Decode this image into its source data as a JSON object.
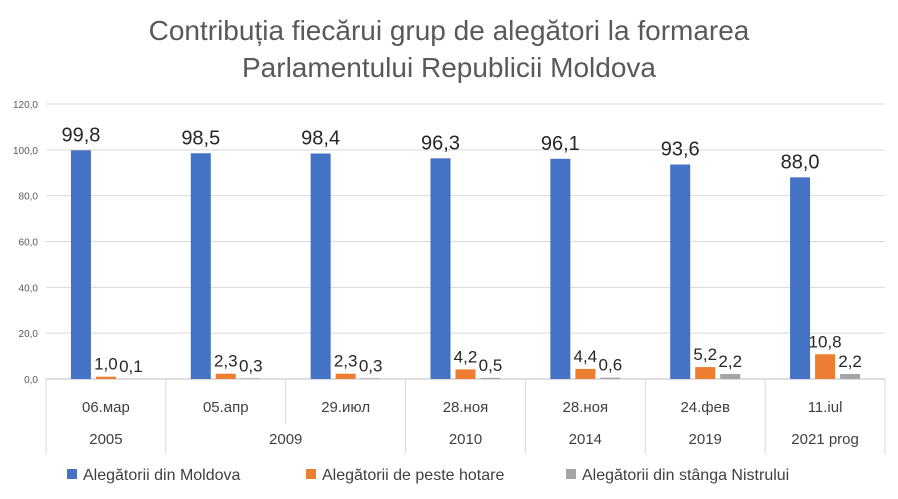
{
  "chart_data": {
    "type": "bar",
    "title_lines": [
      "Contribuția fiecărui grup de alegători la formarea",
      "Parlamentului Republicii Moldova"
    ],
    "categories": [
      "06.мар",
      "05.апр",
      "29.июл",
      "28.ноя",
      "28.ноя",
      "24.фев",
      "11.iul"
    ],
    "group_labels": [
      {
        "label": "2005",
        "span": 1
      },
      {
        "label": "2009",
        "span": 2
      },
      {
        "label": "2010",
        "span": 1
      },
      {
        "label": "2014",
        "span": 1
      },
      {
        "label": "2019",
        "span": 1
      },
      {
        "label": "2021 prog",
        "span": 1
      }
    ],
    "series": [
      {
        "name": "Alegătorii din Moldova",
        "color": "#4472C4",
        "values": [
          99.8,
          98.5,
          98.4,
          96.3,
          96.1,
          93.6,
          88.0
        ],
        "labels": [
          "99,8",
          "98,5",
          "98,4",
          "96,3",
          "96,1",
          "93,6",
          "88,0"
        ]
      },
      {
        "name": "Alegătorii de peste hotare",
        "color": "#ED7D31",
        "values": [
          1.0,
          2.3,
          2.3,
          4.2,
          4.4,
          5.2,
          10.8
        ],
        "labels": [
          "1,0",
          "2,3",
          "2,3",
          "4,2",
          "4,4",
          "5,2",
          "10,8"
        ]
      },
      {
        "name": "Alegătorii din stânga Nistrului",
        "color": "#A5A5A5",
        "values": [
          0.1,
          0.3,
          0.3,
          0.5,
          0.6,
          2.2,
          2.2
        ],
        "labels": [
          "0,1",
          "0,3",
          "0,3",
          "0,5",
          "0,6",
          "2,2",
          "2,2"
        ]
      }
    ],
    "y_ticks": [
      "0,0",
      "20,0",
      "40,0",
      "60,0",
      "80,0",
      "100,0",
      "120,0"
    ],
    "y_tick_values": [
      0,
      20,
      40,
      60,
      80,
      100,
      120
    ],
    "ylim": [
      0,
      120
    ],
    "grid": true,
    "legend_position": "bottom"
  }
}
